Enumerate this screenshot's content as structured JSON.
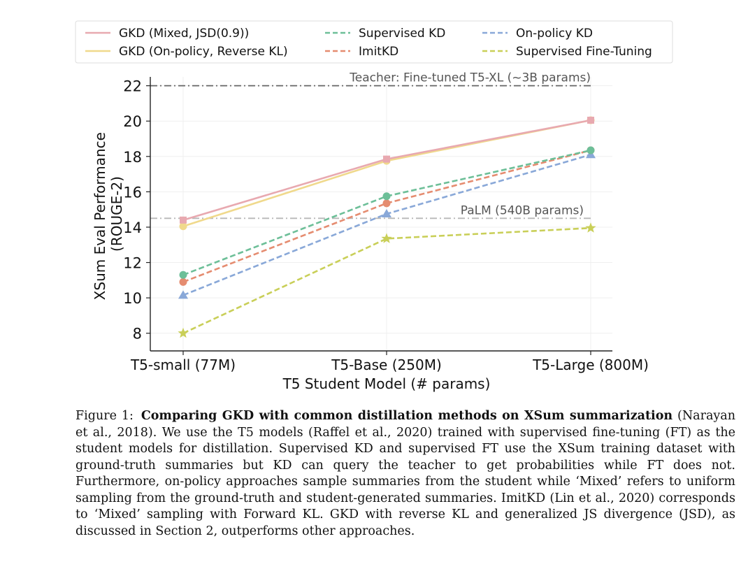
{
  "chart_data": {
    "type": "line",
    "categories": [
      "T5-small (77M)",
      "T5-Base (250M)",
      "T5-Large (800M)"
    ],
    "xlabel": "T5 Student Model (# params)",
    "ylabel_lines": [
      "XSum Eval Performance",
      "(ROUGE-2)"
    ],
    "ylim": [
      7.0,
      22.5
    ],
    "yticks": [
      8,
      10,
      12,
      14,
      16,
      18,
      20,
      22
    ],
    "grid": true,
    "legend_position": "top",
    "series": [
      {
        "name": "GKD (Mixed, JSD(0.9))",
        "values": [
          14.4,
          17.85,
          20.05
        ],
        "color": "#e8a9b0",
        "style": "solid",
        "marker": "square"
      },
      {
        "name": "GKD (On-policy, Reverse KL)",
        "values": [
          14.05,
          17.75,
          20.05
        ],
        "color": "#f0d98c",
        "style": "solid",
        "marker": "circle"
      },
      {
        "name": "Supervised KD",
        "values": [
          11.3,
          15.75,
          18.35
        ],
        "color": "#6dbf98",
        "style": "dashed",
        "marker": "circle"
      },
      {
        "name": "ImitKD",
        "values": [
          10.9,
          15.35,
          18.35
        ],
        "color": "#e58c70",
        "style": "dashed",
        "marker": "circle"
      },
      {
        "name": "On-policy KD",
        "values": [
          10.15,
          14.75,
          18.1
        ],
        "color": "#89a8d8",
        "style": "dashed",
        "marker": "triangle"
      },
      {
        "name": "Supervised Fine-Tuning",
        "values": [
          8.0,
          13.35,
          13.95
        ],
        "color": "#c9cf58",
        "style": "dashed",
        "marker": "star"
      }
    ],
    "reference_lines": [
      {
        "label": "Teacher: Fine-tuned T5-XL (~3B params)",
        "value": 22.0,
        "color": "#666666"
      },
      {
        "label": "PaLM (540B params)",
        "value": 14.5,
        "color": "#b8b8b8"
      }
    ]
  },
  "caption": {
    "label": "Figure 1:",
    "bold": "Comparing GKD with common distillation methods on XSum summarization",
    "text": " (Narayan et al., 2018). We use the T5 models (Raffel et al., 2020) trained with supervised fine-tuning (FT) as the student models for distillation. Supervised KD and supervised FT use the XSum training dataset with ground-truth summaries but KD can query the teacher to get probabilities while FT does not. Furthermore, on-policy approaches sample summaries from the student while ‘Mixed’ refers to uniform sampling from the ground-truth and student-generated summaries. ImitKD (Lin et al., 2020) corresponds to ‘Mixed’ sampling with Forward KL. GKD with reverse KL and generalized JS divergence (JSD), as discussed in Section 2, outperforms other approaches."
  }
}
